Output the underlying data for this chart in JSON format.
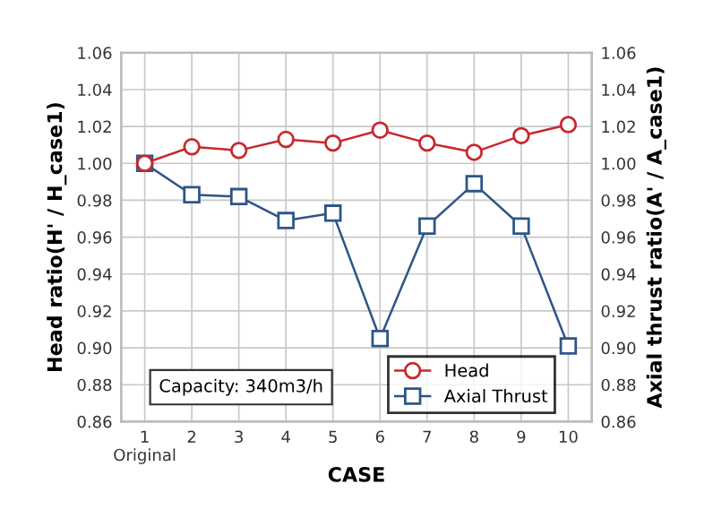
{
  "chart_data": {
    "type": "line",
    "xlabel": "CASE",
    "ylabel": "Head ratio(H' / H_case1)",
    "y2label": "Axial thrust ratio(A' / A_case1)",
    "categories": [
      "1\nOriginal",
      "2",
      "3",
      "4",
      "5",
      "6",
      "7",
      "8",
      "9",
      "10"
    ],
    "series": [
      {
        "name": "Head",
        "color": "#c8282d",
        "marker": "circle",
        "values": [
          1.0,
          1.009,
          1.007,
          1.013,
          1.011,
          1.018,
          1.011,
          1.006,
          1.015,
          1.021
        ]
      },
      {
        "name": "Axial Thrust",
        "color": "#2f5587",
        "marker": "square",
        "values": [
          1.0,
          0.983,
          0.982,
          0.969,
          0.973,
          0.905,
          0.966,
          0.989,
          0.966,
          0.901
        ]
      }
    ],
    "ylim": [
      0.86,
      1.06
    ],
    "yticks": [
      {
        "value": 0.86,
        "label": "0.86"
      },
      {
        "value": 0.88,
        "label": "0.88"
      },
      {
        "value": 0.9,
        "label": "0.90"
      },
      {
        "value": 0.92,
        "label": "0.92"
      },
      {
        "value": 0.94,
        "label": "0.94"
      },
      {
        "value": 0.96,
        "label": "0.96"
      },
      {
        "value": 0.98,
        "label": "0.98"
      },
      {
        "value": 1.0,
        "label": "1.00"
      },
      {
        "value": 1.02,
        "label": "1.02"
      },
      {
        "value": 1.04,
        "label": "1.04"
      },
      {
        "value": 1.06,
        "label": "1.06"
      }
    ],
    "y2lim": [
      0.86,
      1.06
    ],
    "y2ticks": [
      {
        "value": 0.86,
        "label": "0.86"
      },
      {
        "value": 0.88,
        "label": "0.88"
      },
      {
        "value": 0.9,
        "label": "0.90"
      },
      {
        "value": 0.92,
        "label": "0.92"
      },
      {
        "value": 0.94,
        "label": "0.94"
      },
      {
        "value": 0.96,
        "label": "0.96"
      },
      {
        "value": 0.98,
        "label": "0.98"
      },
      {
        "value": 1.0,
        "label": "1.00"
      },
      {
        "value": 1.02,
        "label": "1.02"
      },
      {
        "value": 1.04,
        "label": "1.04"
      },
      {
        "value": 1.06,
        "label": "1.06"
      }
    ],
    "grid": true,
    "legend": "bottom right",
    "annotations": [
      "Capacity: 340m3/h"
    ]
  }
}
